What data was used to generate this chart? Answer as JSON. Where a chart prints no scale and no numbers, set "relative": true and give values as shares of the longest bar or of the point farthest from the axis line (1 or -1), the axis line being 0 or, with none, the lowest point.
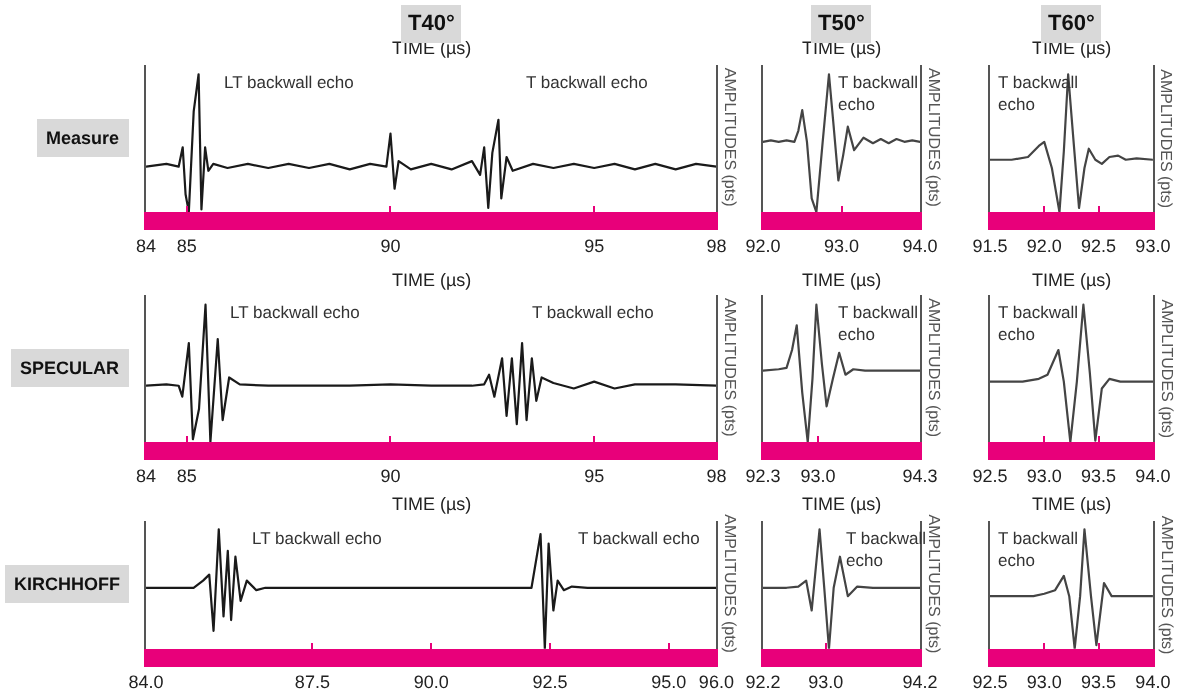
{
  "chart_data": [
    {
      "type": "line",
      "relative": true,
      "title": "T40°",
      "ylabel": "Measure",
      "xlabel": "TIME (µs)",
      "y2label": "AMPLITUDES (pts)",
      "color": "#1a1a1a",
      "xlim": [
        84,
        98
      ],
      "xticks": [
        84,
        85,
        90,
        95,
        98
      ],
      "x": [
        84.0,
        84.5,
        84.8,
        84.9,
        84.97,
        85.05,
        85.17,
        85.29,
        85.36,
        85.45,
        85.53,
        85.65,
        86.0,
        86.5,
        87.0,
        87.5,
        88.0,
        88.5,
        89.0,
        89.5,
        89.9,
        90.0,
        90.1,
        90.2,
        90.5,
        91.0,
        91.5,
        92.0,
        92.2,
        92.3,
        92.4,
        92.5,
        92.65,
        92.72,
        92.85,
        93.0,
        93.5,
        94.0,
        94.5,
        95.0,
        95.5,
        96.0,
        96.5,
        97.0,
        97.5,
        98.0
      ],
      "values": [
        0.33,
        0.35,
        0.33,
        0.47,
        0.13,
        0,
        0.73,
        1,
        0.02,
        0.47,
        0.3,
        0.35,
        0.32,
        0.35,
        0.32,
        0.35,
        0.32,
        0.35,
        0.31,
        0.35,
        0.33,
        0.57,
        0.17,
        0.37,
        0.31,
        0.35,
        0.31,
        0.37,
        0.27,
        0.47,
        0.03,
        0.43,
        0.67,
        0.1,
        0.4,
        0.3,
        0.35,
        0.32,
        0.35,
        0.32,
        0.35,
        0.31,
        0.35,
        0.31,
        0.35,
        0.33
      ],
      "annotations": [
        "LT backwall echo",
        "T backwall echo"
      ]
    },
    {
      "type": "line",
      "relative": true,
      "title": "T50°",
      "xlabel": "TIME (µs)",
      "y2label": "AMPLITUDES (pts)",
      "color": "#444444",
      "xlim": [
        92.0,
        94.0
      ],
      "xticks": [
        {
          "value": 92.0,
          "label": "92.0"
        },
        {
          "value": 93.0,
          "label": "93.0"
        },
        {
          "value": 94.0,
          "label": "94.0"
        }
      ],
      "x": [
        92.0,
        92.1,
        92.2,
        92.3,
        92.4,
        92.45,
        92.5,
        92.56,
        92.62,
        92.68,
        92.76,
        92.84,
        92.9,
        92.96,
        93.02,
        93.08,
        93.16,
        93.28,
        93.4,
        93.5,
        93.6,
        93.7,
        93.8,
        93.9,
        94.0
      ],
      "values": [
        0.51,
        0.52,
        0.51,
        0.52,
        0.51,
        0.59,
        0.74,
        0.51,
        0.1,
        0,
        0.51,
        1,
        0.62,
        0.23,
        0.41,
        0.62,
        0.45,
        0.54,
        0.5,
        0.53,
        0.5,
        0.53,
        0.51,
        0.52,
        0.51
      ],
      "annotations": [
        "T backwall echo"
      ]
    },
    {
      "type": "line",
      "relative": true,
      "title": "T60°",
      "xlabel": "TIME (µs)",
      "y2label": "AMPLITUDES (pts)",
      "color": "#444444",
      "xlim": [
        91.5,
        93.0
      ],
      "xticks": [
        {
          "value": 91.5,
          "label": "91.5"
        },
        {
          "value": 92.0,
          "label": "92.0"
        },
        {
          "value": 92.5,
          "label": "92.5"
        },
        {
          "value": 93.0,
          "label": "93.0"
        }
      ],
      "x": [
        91.5,
        91.7,
        91.85,
        91.95,
        92.0,
        92.07,
        92.14,
        92.18,
        92.22,
        92.27,
        92.32,
        92.37,
        92.41,
        92.47,
        92.53,
        92.6,
        92.68,
        92.75,
        92.85,
        93.0
      ],
      "values": [
        0.38,
        0.38,
        0.4,
        0.48,
        0.51,
        0.32,
        0,
        0.44,
        1,
        0.51,
        0.03,
        0.32,
        0.46,
        0.38,
        0.35,
        0.4,
        0.41,
        0.38,
        0.39,
        0.38
      ],
      "annotations": [
        "T backwall echo"
      ]
    },
    {
      "type": "line",
      "relative": true,
      "ylabel": "SPECULAR",
      "xlabel": "TIME (µs)",
      "y2label": "AMPLITUDES (pts)",
      "color": "#1a1a1a",
      "xlim": [
        84,
        98
      ],
      "xticks": [
        84,
        85,
        90,
        95,
        98
      ],
      "x": [
        84.0,
        84.5,
        84.8,
        84.89,
        85.05,
        85.15,
        85.3,
        85.46,
        85.58,
        85.76,
        85.88,
        86.04,
        86.3,
        87.0,
        88.0,
        89.0,
        90.0,
        91.0,
        92.0,
        92.3,
        92.42,
        92.55,
        92.74,
        92.85,
        92.98,
        93.1,
        93.23,
        93.34,
        93.47,
        93.58,
        93.71,
        94.0,
        94.5,
        95.0,
        95.5,
        96.0,
        97.0,
        98.0
      ],
      "values": [
        0.41,
        0.42,
        0.41,
        0.33,
        0.72,
        0.02,
        0.24,
        1,
        0,
        0.75,
        0.16,
        0.47,
        0.42,
        0.41,
        0.41,
        0.41,
        0.42,
        0.41,
        0.41,
        0.42,
        0.49,
        0.33,
        0.61,
        0.19,
        0.61,
        0.13,
        0.72,
        0.16,
        0.61,
        0.3,
        0.47,
        0.43,
        0.39,
        0.44,
        0.39,
        0.42,
        0.42,
        0.41
      ],
      "annotations": [
        "LT backwall echo",
        "T backwall echo"
      ]
    },
    {
      "type": "line",
      "relative": true,
      "xlabel": "TIME (µs)",
      "y2label": "AMPLITUDES (pts)",
      "color": "#444444",
      "xlim": [
        92.3,
        94.3
      ],
      "xticks": [
        {
          "value": 92.3,
          "label": "92.3"
        },
        {
          "value": 93.0,
          "label": "93.0"
        },
        {
          "value": 94.3,
          "label": "94.3"
        }
      ],
      "x": [
        92.3,
        92.5,
        92.6,
        92.67,
        92.73,
        92.8,
        92.87,
        92.93,
        92.98,
        93.05,
        93.11,
        93.19,
        93.27,
        93.35,
        93.45,
        93.6,
        93.8,
        94.0,
        94.3
      ],
      "values": [
        0.52,
        0.53,
        0.54,
        0.67,
        0.85,
        0.36,
        0,
        0.46,
        1,
        0.57,
        0.26,
        0.46,
        0.65,
        0.49,
        0.53,
        0.52,
        0.52,
        0.52,
        0.52
      ],
      "annotations": [
        "T backwall echo"
      ]
    },
    {
      "type": "line",
      "relative": true,
      "xlabel": "TIME (µs)",
      "y2label": "AMPLITUDES (pts)",
      "color": "#444444",
      "xlim": [
        92.5,
        94.0
      ],
      "xticks": [
        {
          "value": 92.5,
          "label": "92.5"
        },
        {
          "value": 93.0,
          "label": "93.0"
        },
        {
          "value": 93.5,
          "label": "93.5"
        },
        {
          "value": 94.0,
          "label": "94.0"
        }
      ],
      "x": [
        92.5,
        92.8,
        92.95,
        93.03,
        93.13,
        93.18,
        93.24,
        93.3,
        93.36,
        93.42,
        93.47,
        93.53,
        93.6,
        93.7,
        94.0
      ],
      "values": [
        0.44,
        0.44,
        0.46,
        0.49,
        0.67,
        0.44,
        0,
        0.44,
        1,
        0.5,
        0.01,
        0.39,
        0.46,
        0.44,
        0.44
      ],
      "annotations": [
        "T backwall echo"
      ]
    },
    {
      "type": "line",
      "relative": true,
      "ylabel": "KIRCHHOFF",
      "xlabel": "TIME (µs)",
      "y2label": "AMPLITUDES (pts)",
      "color": "#1a1a1a",
      "xlim": [
        84.0,
        96.0
      ],
      "xticks": [
        {
          "value": 84.0,
          "label": "84.0"
        },
        {
          "value": 87.5,
          "label": "87.5"
        },
        {
          "value": 90.0,
          "label": "90.0"
        },
        {
          "value": 92.5,
          "label": "92.5"
        },
        {
          "value": 95.0,
          "label": "95.0"
        },
        {
          "value": 96.0,
          "label": "96.0"
        }
      ],
      "x": [
        84.0,
        85.0,
        85.2,
        85.33,
        85.42,
        85.53,
        85.63,
        85.72,
        85.79,
        85.88,
        85.99,
        86.12,
        86.32,
        86.51,
        88.0,
        90.0,
        92.0,
        92.11,
        92.3,
        92.39,
        92.47,
        92.57,
        92.66,
        92.79,
        92.96,
        93.29,
        94.0,
        96.0
      ],
      "values": [
        0.51,
        0.51,
        0.57,
        0.62,
        0.15,
        1,
        0.27,
        0.82,
        0.24,
        0.77,
        0.4,
        0.57,
        0.49,
        0.51,
        0.51,
        0.51,
        0.51,
        0.51,
        0.96,
        0,
        0.88,
        0.32,
        0.57,
        0.49,
        0.52,
        0.51,
        0.51,
        0.51
      ],
      "annotations": [
        "LT backwall echo",
        "T backwall echo"
      ]
    },
    {
      "type": "line",
      "relative": true,
      "xlabel": "TIME (µs)",
      "y2label": "AMPLITUDES (pts)",
      "color": "#444444",
      "xlim": [
        92.2,
        94.2
      ],
      "xticks": [
        {
          "value": 92.2,
          "label": "92.2"
        },
        {
          "value": 93.0,
          "label": "93.0"
        },
        {
          "value": 94.2,
          "label": "94.2"
        }
      ],
      "x": [
        92.2,
        92.5,
        92.65,
        92.75,
        92.82,
        92.92,
        92.98,
        93.04,
        93.1,
        93.18,
        93.28,
        93.4,
        93.6,
        94.2
      ],
      "values": [
        0.51,
        0.51,
        0.52,
        0.57,
        0.32,
        1,
        0.51,
        0,
        0.51,
        0.77,
        0.44,
        0.52,
        0.51,
        0.51
      ],
      "annotations": [
        "T backwall echo"
      ]
    },
    {
      "type": "line",
      "relative": true,
      "xlabel": "TIME (µs)",
      "y2label": "AMPLITUDES (pts)",
      "color": "#444444",
      "xlim": [
        92.5,
        94.0
      ],
      "xticks": [
        {
          "value": 92.5,
          "label": "92.5"
        },
        {
          "value": 93.0,
          "label": "93.0"
        },
        {
          "value": 93.5,
          "label": "93.5"
        },
        {
          "value": 94.0,
          "label": "94.0"
        }
      ],
      "x": [
        92.5,
        92.9,
        93.0,
        93.1,
        93.18,
        93.23,
        93.28,
        93.33,
        93.37,
        93.43,
        93.48,
        93.55,
        93.62,
        93.8,
        94.0
      ],
      "values": [
        0.44,
        0.44,
        0.46,
        0.49,
        0.61,
        0.44,
        0,
        0.44,
        1,
        0.44,
        0.03,
        0.55,
        0.44,
        0.44,
        0.44
      ],
      "annotations": [
        "T backwall echo"
      ]
    }
  ]
}
